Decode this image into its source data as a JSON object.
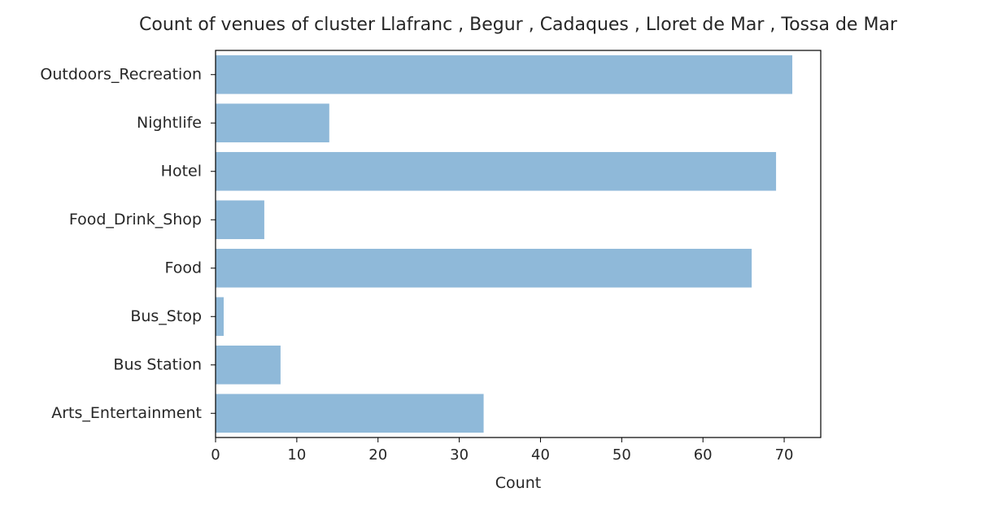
{
  "chart_data": {
    "type": "bar",
    "orientation": "horizontal",
    "title": "Count of venues of cluster Llafranc , Begur , Cadaques , Lloret de Mar , Tossa de Mar",
    "xlabel": "Count",
    "ylabel": "",
    "categories": [
      "Outdoors_Recreation",
      "Nightlife",
      "Hotel",
      "Food_Drink_Shop",
      "Food",
      "Bus_Stop",
      "Bus Station",
      "Arts_Entertainment"
    ],
    "values": [
      71,
      14,
      69,
      6,
      66,
      1,
      8,
      33
    ],
    "xlim": [
      0,
      74.5
    ],
    "xticks": [
      0,
      10,
      20,
      30,
      40,
      50,
      60,
      70
    ],
    "bar_color": "#8fb9d9",
    "grid": false,
    "legend": "none"
  }
}
